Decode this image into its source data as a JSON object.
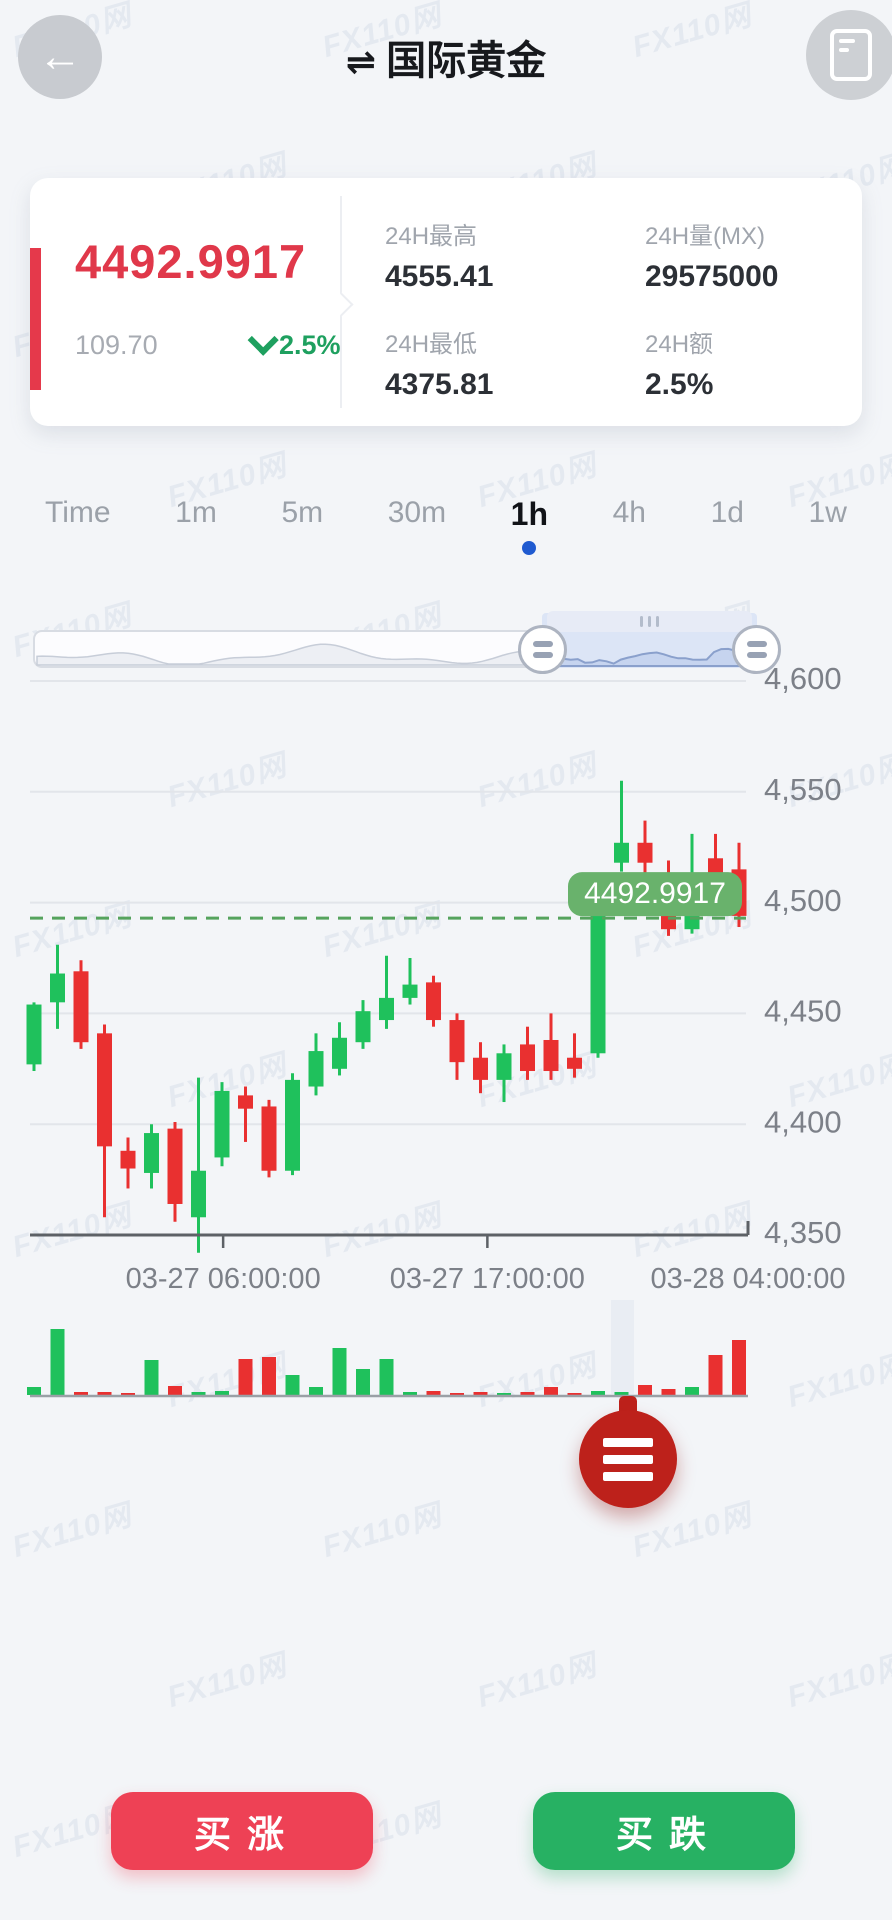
{
  "watermark": {
    "text": "FX110网"
  },
  "header": {
    "back_icon": "←",
    "swap_icon": "⇌",
    "title": "国际黄金"
  },
  "quote": {
    "current_price": "4492.9917",
    "change_abs": "109.70",
    "change_pct": "2.5%",
    "accent_color": "#e5394b",
    "price_color": "#e0384a",
    "stats": [
      {
        "label": "24H最高",
        "value": "4555.41"
      },
      {
        "label": "24H量(MX)",
        "value": "29575000"
      },
      {
        "label": "24H最低",
        "value": "4375.81"
      },
      {
        "label": "24H额",
        "value": "2.5%"
      }
    ]
  },
  "intervals": {
    "items": [
      "Time",
      "1m",
      "5m",
      "30m",
      "1h",
      "4h",
      "1d",
      "1w"
    ],
    "active": "1h",
    "active_dot_color": "#1f5ad0"
  },
  "chart_data": {
    "type": "candlestick",
    "interval": "1h",
    "ylim": [
      4350,
      4600
    ],
    "y_ticks": [
      {
        "label": "4,600",
        "value": 4600
      },
      {
        "label": "4,550",
        "value": 4550
      },
      {
        "label": "4,500",
        "value": 4500
      },
      {
        "label": "4,450",
        "value": 4450
      },
      {
        "label": "4,400",
        "value": 4400
      },
      {
        "label": "4,350",
        "value": 4350
      }
    ],
    "x_ticks": [
      {
        "label": "03-27 06:00:00",
        "pos": 0.269
      },
      {
        "label": "03-27 17:00:00",
        "pos": 0.637
      },
      {
        "label": "03-28 04:00:00",
        "pos": 1.0
      }
    ],
    "last_price": 4492.9917,
    "last_price_label": "4492.9917",
    "last_price_tag_color": "#69b26c",
    "up_color": "#1fc15c",
    "down_color": "#e93030",
    "grid": true,
    "legend": "none",
    "candles_ohlcv": [
      [
        4427,
        4455,
        4424,
        4454,
        8
      ],
      [
        4455,
        4481,
        4443,
        4468,
        66
      ],
      [
        4469,
        4474,
        4434,
        4437,
        3
      ],
      [
        4441,
        4445,
        4358,
        4390,
        3
      ],
      [
        4388,
        4394,
        4371,
        4380,
        2
      ],
      [
        4378,
        4400,
        4371,
        4396,
        35
      ],
      [
        4398,
        4401,
        4356,
        4364,
        9
      ],
      [
        4358,
        4421,
        4342,
        4379,
        3
      ],
      [
        4385,
        4419,
        4381,
        4415,
        4
      ],
      [
        4413,
        4417,
        4392,
        4407,
        36
      ],
      [
        4408,
        4411,
        4376,
        4379,
        38
      ],
      [
        4379,
        4423,
        4377,
        4420,
        20
      ],
      [
        4417,
        4441,
        4413,
        4433,
        8
      ],
      [
        4425,
        4446,
        4422,
        4439,
        47
      ],
      [
        4437,
        4456,
        4434,
        4451,
        26
      ],
      [
        4447,
        4476,
        4443,
        4457,
        36
      ],
      [
        4457,
        4475,
        4454,
        4463,
        3
      ],
      [
        4464,
        4467,
        4444,
        4447,
        4
      ],
      [
        4447,
        4450,
        4420,
        4428,
        2
      ],
      [
        4430,
        4437,
        4414,
        4420,
        3
      ],
      [
        4420,
        4436,
        4410,
        4432,
        2
      ],
      [
        4436,
        4444,
        4420,
        4424,
        3
      ],
      [
        4438,
        4450,
        4420,
        4424,
        8
      ],
      [
        4430,
        4441,
        4421,
        4425,
        2
      ],
      [
        4432,
        4507,
        4430,
        4503,
        4
      ],
      [
        4518,
        4555,
        4514,
        4527,
        3
      ],
      [
        4527,
        4537,
        4513,
        4518,
        10
      ],
      [
        4501,
        4519,
        4485,
        4488,
        6
      ],
      [
        4488,
        4531,
        4486,
        4501,
        8
      ],
      [
        4520,
        4531,
        4506,
        4512,
        40
      ],
      [
        4515,
        4527,
        4489,
        4494,
        55
      ]
    ]
  },
  "fab": {
    "icon": "menu",
    "color": "#bd211b"
  },
  "actions": {
    "buy_up": "买涨",
    "buy_up_color": "#ee4155",
    "buy_down": "买跌",
    "buy_down_color": "#27b163"
  }
}
